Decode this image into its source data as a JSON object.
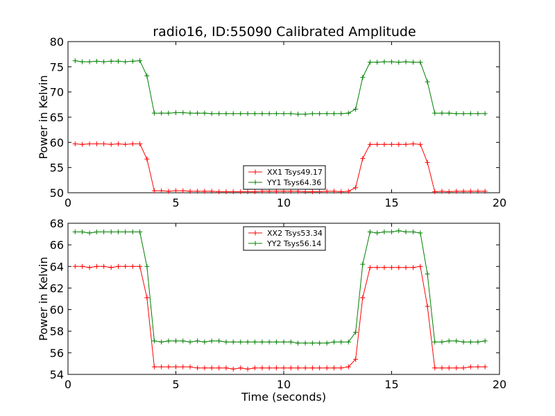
{
  "figure": {
    "title": "radio16, ID:55090 Calibrated Amplitude"
  },
  "chart_data": [
    {
      "type": "line",
      "title": "radio16, ID:55090 Calibrated Amplitude",
      "xlabel": "",
      "ylabel": "Power in Kelvin",
      "xlim": [
        0,
        20
      ],
      "ylim": [
        50,
        80
      ],
      "xticks": [
        0,
        5,
        10,
        15,
        20
      ],
      "yticks": [
        50,
        55,
        60,
        65,
        70,
        75,
        80
      ],
      "grid": false,
      "legend_position": "lower-center",
      "marker": "+",
      "x": [
        0.33,
        0.66,
        1.0,
        1.33,
        1.66,
        2.0,
        2.33,
        2.66,
        3.0,
        3.33,
        3.66,
        4.0,
        4.33,
        4.66,
        5.0,
        5.33,
        5.66,
        6.0,
        6.33,
        6.66,
        7.0,
        7.33,
        7.66,
        8.0,
        8.33,
        8.66,
        9.0,
        9.33,
        9.66,
        10.0,
        10.33,
        10.66,
        11.0,
        11.33,
        11.66,
        12.0,
        12.33,
        12.66,
        13.0,
        13.33,
        13.66,
        14.0,
        14.33,
        14.66,
        15.0,
        15.33,
        15.66,
        16.0,
        16.33,
        16.66,
        17.0,
        17.33,
        17.66,
        18.0,
        18.33,
        18.66,
        19.0,
        19.33
      ],
      "series": [
        {
          "name": "XX1 Tsys49.17",
          "color": "#ff0000",
          "values": [
            59.7,
            59.6,
            59.7,
            59.7,
            59.7,
            59.6,
            59.7,
            59.6,
            59.7,
            59.7,
            56.7,
            50.4,
            50.4,
            50.3,
            50.4,
            50.4,
            50.3,
            50.3,
            50.3,
            50.3,
            50.2,
            50.2,
            50.2,
            50.2,
            50.2,
            50.2,
            50.3,
            50.3,
            50.3,
            50.3,
            50.3,
            50.3,
            50.2,
            50.2,
            50.2,
            50.3,
            50.3,
            50.2,
            50.3,
            51.0,
            56.8,
            59.6,
            59.6,
            59.6,
            59.6,
            59.6,
            59.6,
            59.7,
            59.6,
            56.0,
            50.2,
            50.3,
            50.2,
            50.3,
            50.3,
            50.3,
            50.3,
            50.3
          ]
        },
        {
          "name": "YY1 Tsys64.36",
          "color": "#008000",
          "values": [
            76.2,
            76.0,
            76.0,
            76.1,
            76.0,
            76.1,
            76.1,
            76.0,
            76.1,
            76.2,
            73.2,
            65.8,
            65.8,
            65.8,
            65.9,
            65.9,
            65.8,
            65.8,
            65.8,
            65.7,
            65.7,
            65.7,
            65.7,
            65.7,
            65.7,
            65.7,
            65.7,
            65.7,
            65.7,
            65.7,
            65.7,
            65.6,
            65.6,
            65.7,
            65.7,
            65.7,
            65.7,
            65.7,
            65.8,
            66.6,
            72.9,
            75.9,
            75.9,
            76.0,
            76.0,
            75.9,
            76.0,
            75.9,
            75.9,
            72.0,
            65.8,
            65.8,
            65.8,
            65.7,
            65.7,
            65.7,
            65.7,
            65.7
          ]
        }
      ]
    },
    {
      "type": "line",
      "title": "",
      "xlabel": "Time (seconds)",
      "ylabel": "Power in Kelvin",
      "xlim": [
        0,
        20
      ],
      "ylim": [
        54,
        68
      ],
      "xticks": [
        0,
        5,
        10,
        15,
        20
      ],
      "yticks": [
        54,
        56,
        58,
        60,
        62,
        64,
        66,
        68
      ],
      "grid": false,
      "legend_position": "upper-center",
      "marker": "+",
      "x": [
        0.33,
        0.66,
        1.0,
        1.33,
        1.66,
        2.0,
        2.33,
        2.66,
        3.0,
        3.33,
        3.66,
        4.0,
        4.33,
        4.66,
        5.0,
        5.33,
        5.66,
        6.0,
        6.33,
        6.66,
        7.0,
        7.33,
        7.66,
        8.0,
        8.33,
        8.66,
        9.0,
        9.33,
        9.66,
        10.0,
        10.33,
        10.66,
        11.0,
        11.33,
        11.66,
        12.0,
        12.33,
        12.66,
        13.0,
        13.33,
        13.66,
        14.0,
        14.33,
        14.66,
        15.0,
        15.33,
        15.66,
        16.0,
        16.33,
        16.66,
        17.0,
        17.33,
        17.66,
        18.0,
        18.33,
        18.66,
        19.0,
        19.33
      ],
      "series": [
        {
          "name": "XX2 Tsys53.34",
          "color": "#ff0000",
          "values": [
            64.0,
            64.0,
            63.9,
            64.0,
            64.0,
            63.9,
            64.0,
            64.0,
            64.0,
            64.0,
            61.1,
            54.7,
            54.7,
            54.7,
            54.7,
            54.7,
            54.7,
            54.6,
            54.6,
            54.6,
            54.6,
            54.6,
            54.5,
            54.6,
            54.5,
            54.6,
            54.6,
            54.6,
            54.6,
            54.6,
            54.6,
            54.6,
            54.6,
            54.6,
            54.6,
            54.6,
            54.6,
            54.6,
            54.7,
            55.4,
            61.1,
            63.9,
            63.9,
            63.9,
            63.9,
            63.9,
            63.9,
            63.9,
            64.0,
            60.3,
            54.6,
            54.6,
            54.6,
            54.6,
            54.6,
            54.7,
            54.7,
            54.7
          ]
        },
        {
          "name": "YY2 Tsys56.14",
          "color": "#008000",
          "values": [
            67.2,
            67.2,
            67.1,
            67.2,
            67.2,
            67.2,
            67.2,
            67.2,
            67.2,
            67.2,
            64.0,
            57.1,
            57.0,
            57.1,
            57.1,
            57.1,
            57.0,
            57.1,
            57.0,
            57.1,
            57.1,
            57.0,
            57.0,
            57.0,
            57.0,
            57.0,
            57.0,
            57.0,
            57.0,
            57.0,
            57.0,
            56.9,
            56.9,
            56.9,
            56.9,
            56.9,
            57.0,
            57.0,
            57.0,
            57.9,
            64.2,
            67.2,
            67.1,
            67.2,
            67.2,
            67.3,
            67.2,
            67.2,
            67.1,
            63.3,
            57.0,
            57.0,
            57.1,
            57.1,
            57.0,
            57.0,
            57.0,
            57.1
          ]
        }
      ]
    }
  ]
}
